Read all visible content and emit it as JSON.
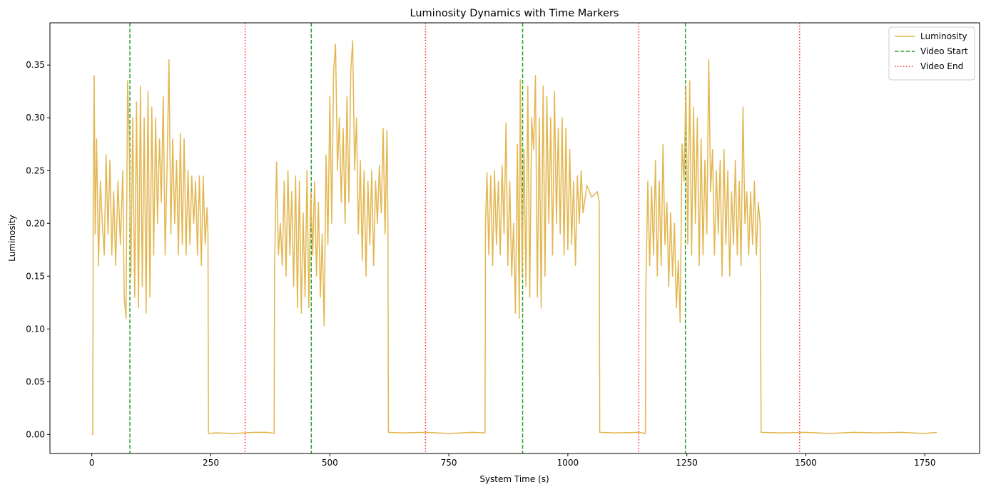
{
  "chart_data": {
    "type": "line",
    "title": "Luminosity Dynamics with Time Markers",
    "xlabel": "System Time (s)",
    "ylabel": "Luminosity",
    "xlim": [
      -88,
      1865
    ],
    "ylim": [
      -0.018,
      0.39
    ],
    "xticks": [
      0,
      250,
      500,
      750,
      1000,
      1250,
      1500,
      1750
    ],
    "yticks": [
      0.0,
      0.05,
      0.1,
      0.15,
      0.2,
      0.25,
      0.3,
      0.35
    ],
    "ytick_labels": [
      "0.00",
      "0.05",
      "0.10",
      "0.15",
      "0.20",
      "0.25",
      "0.30",
      "0.35"
    ],
    "legend_position": "top-right",
    "series": [
      {
        "name": "Luminosity",
        "color": "#e3b64f",
        "style": "solid",
        "points": [
          [
            0,
            0.0
          ],
          [
            2,
            0.0
          ],
          [
            3,
            0.226
          ],
          [
            5,
            0.34
          ],
          [
            7,
            0.19
          ],
          [
            10,
            0.28
          ],
          [
            14,
            0.16
          ],
          [
            18,
            0.24
          ],
          [
            22,
            0.2
          ],
          [
            26,
            0.17
          ],
          [
            30,
            0.265
          ],
          [
            34,
            0.19
          ],
          [
            38,
            0.26
          ],
          [
            42,
            0.17
          ],
          [
            46,
            0.23
          ],
          [
            50,
            0.16
          ],
          [
            55,
            0.24
          ],
          [
            60,
            0.18
          ],
          [
            65,
            0.25
          ],
          [
            68,
            0.13
          ],
          [
            72,
            0.11
          ],
          [
            75,
            0.335
          ],
          [
            78,
            0.29
          ],
          [
            82,
            0.15
          ],
          [
            86,
            0.3
          ],
          [
            90,
            0.13
          ],
          [
            94,
            0.315
          ],
          [
            98,
            0.12
          ],
          [
            102,
            0.33
          ],
          [
            106,
            0.14
          ],
          [
            110,
            0.3
          ],
          [
            114,
            0.115
          ],
          [
            118,
            0.325
          ],
          [
            122,
            0.13
          ],
          [
            126,
            0.31
          ],
          [
            130,
            0.17
          ],
          [
            134,
            0.3
          ],
          [
            138,
            0.2
          ],
          [
            142,
            0.28
          ],
          [
            146,
            0.22
          ],
          [
            150,
            0.32
          ],
          [
            154,
            0.17
          ],
          [
            158,
            0.25
          ],
          [
            162,
            0.355
          ],
          [
            166,
            0.19
          ],
          [
            170,
            0.28
          ],
          [
            174,
            0.2
          ],
          [
            178,
            0.26
          ],
          [
            182,
            0.17
          ],
          [
            186,
            0.285
          ],
          [
            190,
            0.18
          ],
          [
            194,
            0.28
          ],
          [
            198,
            0.17
          ],
          [
            202,
            0.25
          ],
          [
            206,
            0.18
          ],
          [
            210,
            0.245
          ],
          [
            214,
            0.2
          ],
          [
            218,
            0.24
          ],
          [
            222,
            0.17
          ],
          [
            226,
            0.245
          ],
          [
            230,
            0.16
          ],
          [
            234,
            0.245
          ],
          [
            238,
            0.18
          ],
          [
            242,
            0.215
          ],
          [
            244,
            0.19
          ],
          [
            245,
            0.001
          ],
          [
            260,
            0.0015
          ],
          [
            300,
            0.001
          ],
          [
            320,
            0.0015
          ],
          [
            340,
            0.002
          ],
          [
            370,
            0.002
          ],
          [
            383,
            0.001
          ],
          [
            384,
            0.16
          ],
          [
            388,
            0.258
          ],
          [
            392,
            0.17
          ],
          [
            396,
            0.2
          ],
          [
            400,
            0.16
          ],
          [
            404,
            0.24
          ],
          [
            408,
            0.15
          ],
          [
            412,
            0.25
          ],
          [
            416,
            0.17
          ],
          [
            420,
            0.23
          ],
          [
            424,
            0.14
          ],
          [
            428,
            0.245
          ],
          [
            432,
            0.12
          ],
          [
            436,
            0.24
          ],
          [
            440,
            0.115
          ],
          [
            444,
            0.21
          ],
          [
            448,
            0.13
          ],
          [
            452,
            0.25
          ],
          [
            456,
            0.12
          ],
          [
            460,
            0.23
          ],
          [
            464,
            0.17
          ],
          [
            468,
            0.24
          ],
          [
            472,
            0.15
          ],
          [
            476,
            0.22
          ],
          [
            480,
            0.13
          ],
          [
            484,
            0.19
          ],
          [
            488,
            0.103
          ],
          [
            492,
            0.265
          ],
          [
            496,
            0.18
          ],
          [
            500,
            0.32
          ],
          [
            504,
            0.2
          ],
          [
            508,
            0.345
          ],
          [
            512,
            0.37
          ],
          [
            516,
            0.25
          ],
          [
            520,
            0.3
          ],
          [
            524,
            0.22
          ],
          [
            528,
            0.29
          ],
          [
            532,
            0.2
          ],
          [
            536,
            0.32
          ],
          [
            540,
            0.22
          ],
          [
            544,
            0.345
          ],
          [
            548,
            0.373
          ],
          [
            552,
            0.25
          ],
          [
            556,
            0.3
          ],
          [
            560,
            0.19
          ],
          [
            564,
            0.26
          ],
          [
            568,
            0.165
          ],
          [
            572,
            0.25
          ],
          [
            576,
            0.15
          ],
          [
            580,
            0.24
          ],
          [
            584,
            0.18
          ],
          [
            588,
            0.25
          ],
          [
            592,
            0.16
          ],
          [
            596,
            0.24
          ],
          [
            600,
            0.2
          ],
          [
            604,
            0.255
          ],
          [
            608,
            0.21
          ],
          [
            612,
            0.29
          ],
          [
            616,
            0.19
          ],
          [
            620,
            0.288
          ],
          [
            622,
            0.2
          ],
          [
            623,
            0.002
          ],
          [
            650,
            0.0015
          ],
          [
            700,
            0.002
          ],
          [
            750,
            0.001
          ],
          [
            800,
            0.002
          ],
          [
            826,
            0.0015
          ],
          [
            827,
            0.2
          ],
          [
            830,
            0.248
          ],
          [
            834,
            0.17
          ],
          [
            838,
            0.245
          ],
          [
            842,
            0.16
          ],
          [
            846,
            0.25
          ],
          [
            850,
            0.18
          ],
          [
            854,
            0.24
          ],
          [
            858,
            0.17
          ],
          [
            862,
            0.255
          ],
          [
            866,
            0.19
          ],
          [
            870,
            0.295
          ],
          [
            874,
            0.16
          ],
          [
            878,
            0.24
          ],
          [
            882,
            0.15
          ],
          [
            886,
            0.2
          ],
          [
            890,
            0.115
          ],
          [
            894,
            0.275
          ],
          [
            898,
            0.11
          ],
          [
            900,
            0.336
          ],
          [
            904,
            0.15
          ],
          [
            908,
            0.27
          ],
          [
            912,
            0.14
          ],
          [
            916,
            0.33
          ],
          [
            920,
            0.13
          ],
          [
            924,
            0.3
          ],
          [
            928,
            0.27
          ],
          [
            932,
            0.34
          ],
          [
            936,
            0.13
          ],
          [
            940,
            0.3
          ],
          [
            944,
            0.12
          ],
          [
            948,
            0.33
          ],
          [
            952,
            0.15
          ],
          [
            956,
            0.32
          ],
          [
            960,
            0.2
          ],
          [
            964,
            0.3
          ],
          [
            968,
            0.17
          ],
          [
            972,
            0.325
          ],
          [
            976,
            0.2
          ],
          [
            980,
            0.29
          ],
          [
            984,
            0.19
          ],
          [
            988,
            0.3
          ],
          [
            992,
            0.17
          ],
          [
            996,
            0.29
          ],
          [
            1000,
            0.175
          ],
          [
            1004,
            0.27
          ],
          [
            1008,
            0.18
          ],
          [
            1012,
            0.24
          ],
          [
            1016,
            0.16
          ],
          [
            1020,
            0.245
          ],
          [
            1024,
            0.2
          ],
          [
            1028,
            0.25
          ],
          [
            1032,
            0.21
          ],
          [
            1040,
            0.236
          ],
          [
            1050,
            0.225
          ],
          [
            1062,
            0.23
          ],
          [
            1066,
            0.22
          ],
          [
            1067,
            0.002
          ],
          [
            1100,
            0.0015
          ],
          [
            1150,
            0.002
          ],
          [
            1163,
            0.001
          ],
          [
            1164,
            0.14
          ],
          [
            1168,
            0.24
          ],
          [
            1172,
            0.16
          ],
          [
            1176,
            0.235
          ],
          [
            1180,
            0.17
          ],
          [
            1184,
            0.26
          ],
          [
            1188,
            0.15
          ],
          [
            1192,
            0.24
          ],
          [
            1196,
            0.16
          ],
          [
            1200,
            0.275
          ],
          [
            1204,
            0.18
          ],
          [
            1208,
            0.22
          ],
          [
            1212,
            0.14
          ],
          [
            1216,
            0.21
          ],
          [
            1220,
            0.15
          ],
          [
            1224,
            0.2
          ],
          [
            1228,
            0.12
          ],
          [
            1232,
            0.165
          ],
          [
            1236,
            0.106
          ],
          [
            1240,
            0.275
          ],
          [
            1244,
            0.24
          ],
          [
            1248,
            0.33
          ],
          [
            1252,
            0.18
          ],
          [
            1256,
            0.335
          ],
          [
            1260,
            0.17
          ],
          [
            1264,
            0.31
          ],
          [
            1268,
            0.2
          ],
          [
            1272,
            0.3
          ],
          [
            1276,
            0.16
          ],
          [
            1280,
            0.28
          ],
          [
            1284,
            0.17
          ],
          [
            1288,
            0.26
          ],
          [
            1292,
            0.19
          ],
          [
            1296,
            0.355
          ],
          [
            1300,
            0.23
          ],
          [
            1304,
            0.27
          ],
          [
            1308,
            0.17
          ],
          [
            1312,
            0.25
          ],
          [
            1316,
            0.19
          ],
          [
            1320,
            0.26
          ],
          [
            1324,
            0.15
          ],
          [
            1328,
            0.27
          ],
          [
            1332,
            0.18
          ],
          [
            1336,
            0.25
          ],
          [
            1340,
            0.15
          ],
          [
            1344,
            0.23
          ],
          [
            1348,
            0.18
          ],
          [
            1352,
            0.26
          ],
          [
            1356,
            0.17
          ],
          [
            1360,
            0.24
          ],
          [
            1364,
            0.16
          ],
          [
            1368,
            0.31
          ],
          [
            1372,
            0.2
          ],
          [
            1376,
            0.23
          ],
          [
            1380,
            0.17
          ],
          [
            1384,
            0.23
          ],
          [
            1388,
            0.18
          ],
          [
            1392,
            0.24
          ],
          [
            1396,
            0.17
          ],
          [
            1400,
            0.22
          ],
          [
            1404,
            0.2
          ],
          [
            1406,
            0.002
          ],
          [
            1450,
            0.0015
          ],
          [
            1500,
            0.002
          ],
          [
            1550,
            0.001
          ],
          [
            1600,
            0.002
          ],
          [
            1650,
            0.0015
          ],
          [
            1700,
            0.002
          ],
          [
            1750,
            0.001
          ],
          [
            1775,
            0.002
          ]
        ]
      }
    ],
    "video_start_markers": {
      "name": "Video Start",
      "color": "#2ca02c",
      "style": "dashed",
      "x": [
        80,
        461,
        905,
        1247
      ]
    },
    "video_end_markers": {
      "name": "Video End",
      "color": "#ff2a2a",
      "style": "dotted",
      "x": [
        322,
        701,
        1149,
        1487
      ]
    }
  }
}
